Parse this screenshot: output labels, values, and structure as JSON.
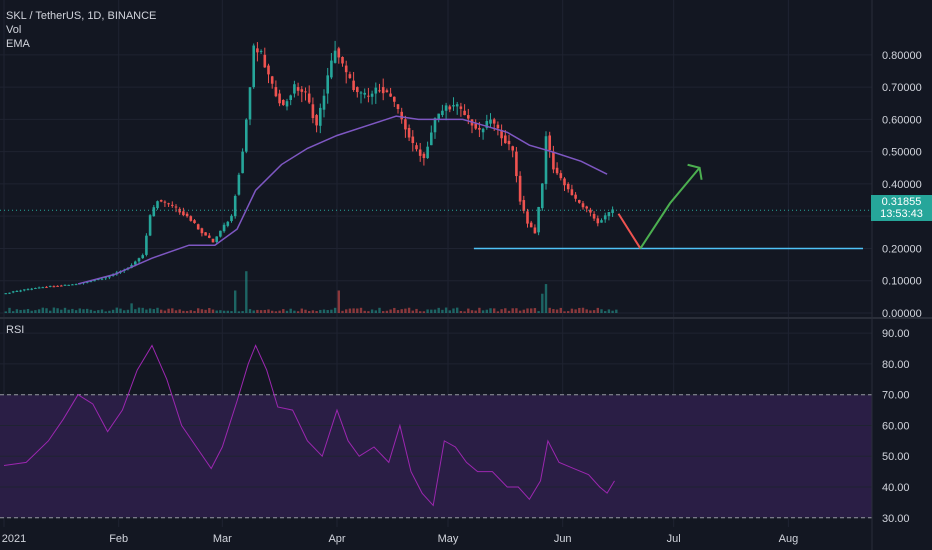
{
  "header": {
    "symbol": "SKL / TetherUS, 1D, BINANCE",
    "vol": "Vol",
    "ema": "EMA"
  },
  "rsi_label": "RSI",
  "last_price": "0.31855",
  "countdown": "13:53:43",
  "colors": {
    "background": "#131722",
    "up": "#26a69a",
    "down": "#ef5350",
    "ema": "#7e57c2",
    "rsi": "#9c27b0",
    "rsi_band": "#2a1e45",
    "support": "#4fc3f7",
    "arrow_up": "#4caf50",
    "arrow_down": "#ef5350"
  },
  "chart_data": [
    {
      "type": "candlestick",
      "title": "SKL / TetherUS, 1D, BINANCE",
      "ylim": [
        0.0,
        0.88
      ],
      "y_ticks": [
        "0.80000",
        "0.70000",
        "0.60000",
        "0.50000",
        "0.40000",
        "0.30000",
        "0.20000",
        "0.10000",
        "0.00000"
      ],
      "y_tick_values": [
        0.8,
        0.7,
        0.6,
        0.5,
        0.4,
        0.3,
        0.2,
        0.1,
        0.0
      ],
      "x_ticks": [
        "2021",
        "Feb",
        "Mar",
        "Apr",
        "May",
        "Jun",
        "Jul",
        "Aug"
      ],
      "x_tick_days": [
        0,
        31,
        59,
        90,
        120,
        151,
        181,
        212
      ],
      "last_price": 0.31855,
      "support_level": 0.2,
      "close_path": [
        [
          0,
          0.06
        ],
        [
          10,
          0.08
        ],
        [
          20,
          0.09
        ],
        [
          28,
          0.11
        ],
        [
          34,
          0.14
        ],
        [
          38,
          0.18
        ],
        [
          40,
          0.3
        ],
        [
          42,
          0.35
        ],
        [
          46,
          0.33
        ],
        [
          50,
          0.3
        ],
        [
          54,
          0.25
        ],
        [
          57,
          0.22
        ],
        [
          60,
          0.27
        ],
        [
          62,
          0.3
        ],
        [
          65,
          0.5
        ],
        [
          67,
          0.7
        ],
        [
          68,
          0.82
        ],
        [
          70,
          0.8
        ],
        [
          73,
          0.7
        ],
        [
          76,
          0.64
        ],
        [
          79,
          0.7
        ],
        [
          82,
          0.68
        ],
        [
          85,
          0.58
        ],
        [
          88,
          0.73
        ],
        [
          90,
          0.82
        ],
        [
          93,
          0.74
        ],
        [
          96,
          0.68
        ],
        [
          99,
          0.67
        ],
        [
          102,
          0.7
        ],
        [
          105,
          0.67
        ],
        [
          108,
          0.6
        ],
        [
          111,
          0.52
        ],
        [
          114,
          0.48
        ],
        [
          117,
          0.6
        ],
        [
          120,
          0.64
        ],
        [
          123,
          0.64
        ],
        [
          126,
          0.6
        ],
        [
          129,
          0.56
        ],
        [
          132,
          0.6
        ],
        [
          135,
          0.55
        ],
        [
          138,
          0.5
        ],
        [
          140,
          0.35
        ],
        [
          142,
          0.28
        ],
        [
          144,
          0.25
        ],
        [
          146,
          0.4
        ],
        [
          147,
          0.55
        ],
        [
          149,
          0.45
        ],
        [
          152,
          0.4
        ],
        [
          155,
          0.35
        ],
        [
          158,
          0.32
        ],
        [
          161,
          0.28
        ],
        [
          163,
          0.3
        ],
        [
          165,
          0.32
        ]
      ],
      "ema_path": [
        [
          20,
          0.09
        ],
        [
          30,
          0.12
        ],
        [
          40,
          0.17
        ],
        [
          50,
          0.21
        ],
        [
          57,
          0.21
        ],
        [
          63,
          0.26
        ],
        [
          68,
          0.38
        ],
        [
          75,
          0.46
        ],
        [
          82,
          0.51
        ],
        [
          90,
          0.55
        ],
        [
          98,
          0.58
        ],
        [
          106,
          0.61
        ],
        [
          112,
          0.6
        ],
        [
          118,
          0.6
        ],
        [
          124,
          0.6
        ],
        [
          130,
          0.58
        ],
        [
          136,
          0.56
        ],
        [
          142,
          0.52
        ],
        [
          148,
          0.5
        ],
        [
          156,
          0.47
        ],
        [
          163,
          0.43
        ]
      ],
      "projection": [
        [
          165,
          0.32
        ],
        [
          172,
          0.2
        ],
        [
          180,
          0.34
        ],
        [
          188,
          0.45
        ]
      ],
      "volume_spikes": [
        [
          34,
          0.03
        ],
        [
          62,
          0.07
        ],
        [
          65,
          0.13
        ],
        [
          90,
          0.07
        ],
        [
          145,
          0.06
        ],
        [
          146,
          0.09
        ]
      ]
    },
    {
      "type": "line",
      "title": "RSI",
      "ylim": [
        27.0,
        92.0
      ],
      "y_ticks": [
        "90.00",
        "80.00",
        "70.00",
        "60.00",
        "50.00",
        "40.00",
        "30.00"
      ],
      "y_tick_values": [
        90,
        80,
        70,
        60,
        50,
        40,
        30
      ],
      "band": [
        30,
        70
      ],
      "path": [
        [
          0,
          47
        ],
        [
          6,
          48
        ],
        [
          12,
          55
        ],
        [
          16,
          62
        ],
        [
          20,
          70
        ],
        [
          24,
          67
        ],
        [
          28,
          58
        ],
        [
          32,
          65
        ],
        [
          36,
          78
        ],
        [
          40,
          86
        ],
        [
          44,
          75
        ],
        [
          48,
          60
        ],
        [
          52,
          53
        ],
        [
          56,
          46
        ],
        [
          59,
          53
        ],
        [
          63,
          68
        ],
        [
          66,
          80
        ],
        [
          68,
          86
        ],
        [
          71,
          78
        ],
        [
          74,
          66
        ],
        [
          78,
          65
        ],
        [
          82,
          55
        ],
        [
          86,
          50
        ],
        [
          90,
          65
        ],
        [
          93,
          55
        ],
        [
          96,
          50
        ],
        [
          100,
          53
        ],
        [
          104,
          48
        ],
        [
          107,
          60
        ],
        [
          110,
          45
        ],
        [
          113,
          38
        ],
        [
          116,
          34
        ],
        [
          119,
          55
        ],
        [
          122,
          53
        ],
        [
          125,
          48
        ],
        [
          128,
          45
        ],
        [
          132,
          45
        ],
        [
          136,
          40
        ],
        [
          139,
          40
        ],
        [
          142,
          36
        ],
        [
          145,
          42
        ],
        [
          147,
          55
        ],
        [
          150,
          48
        ],
        [
          154,
          46
        ],
        [
          158,
          44
        ],
        [
          161,
          40
        ],
        [
          163,
          38
        ],
        [
          165,
          42
        ]
      ]
    }
  ]
}
